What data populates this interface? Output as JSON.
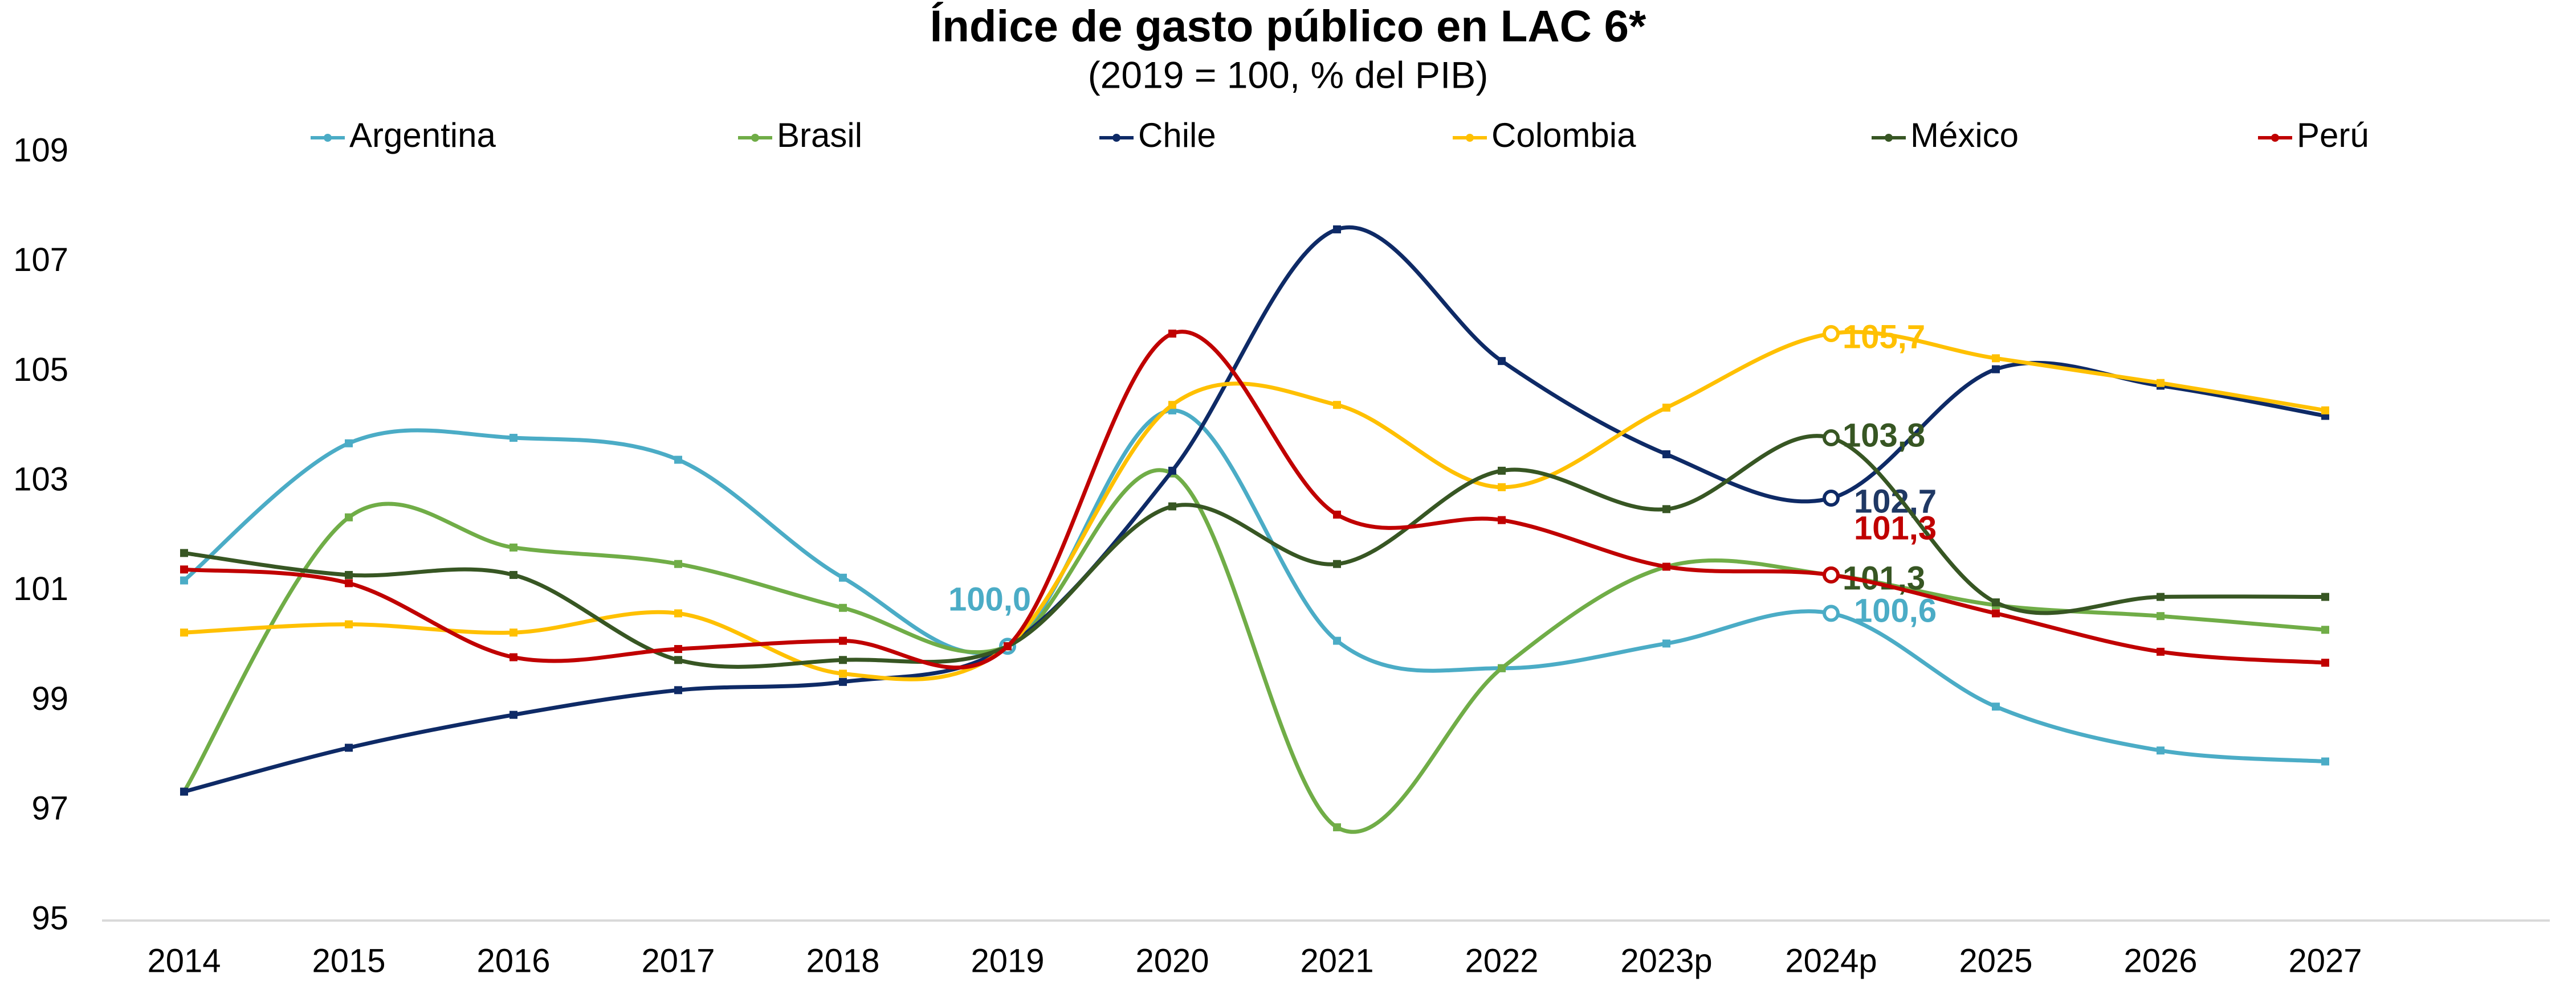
{
  "chart_data": {
    "type": "line",
    "title": "Índice de gasto público en LAC 6*",
    "subtitle": "(2019 = 100, % del PIB)",
    "categories": [
      "2014",
      "2015",
      "2016",
      "2017",
      "2018",
      "2019",
      "2020",
      "2021",
      "2022",
      "2023p",
      "2024p",
      "2025",
      "2026",
      "2027"
    ],
    "ylim": [
      95,
      109
    ],
    "yticks": [
      95,
      97,
      99,
      101,
      103,
      105,
      107,
      109
    ],
    "grid": false,
    "legend": "top",
    "series": [
      {
        "name": "Argentina",
        "color": "#4BACC6",
        "label_color": "#4BACC6",
        "values": [
          101.2,
          103.7,
          103.8,
          103.4,
          101.25,
          100,
          104.3,
          100.1,
          99.6,
          100.05,
          100.6,
          98.9,
          98.1,
          97.9
        ],
        "value_labels": [
          null,
          null,
          null,
          null,
          null,
          "100,0",
          null,
          null,
          null,
          null,
          "100,6",
          null,
          null,
          null
        ]
      },
      {
        "name": "Brasil",
        "color": "#70AD47",
        "label_color": "#375623",
        "values": [
          97.35,
          102.35,
          101.8,
          101.5,
          100.7,
          100,
          103.15,
          96.7,
          99.6,
          101.45,
          101.3,
          100.75,
          100.55,
          100.3
        ],
        "value_labels": [
          null,
          null,
          null,
          null,
          null,
          null,
          null,
          null,
          null,
          null,
          "101,3",
          null,
          null,
          null
        ]
      },
      {
        "name": "Chile",
        "color": "#0E2A66",
        "label_color": "#1F3864",
        "values": [
          97.35,
          98.15,
          98.75,
          99.2,
          99.35,
          100,
          103.2,
          107.6,
          105.2,
          103.5,
          102.7,
          105.05,
          104.75,
          104.2
        ],
        "value_labels": [
          null,
          null,
          null,
          null,
          null,
          null,
          null,
          null,
          null,
          null,
          "102,7",
          null,
          null,
          null
        ]
      },
      {
        "name": "Colombia",
        "color": "#FFC000",
        "label_color": "#FFC000",
        "values": [
          100.25,
          100.4,
          100.25,
          100.6,
          99.5,
          100,
          104.4,
          104.4,
          102.9,
          104.35,
          105.7,
          105.25,
          104.8,
          104.3
        ],
        "value_labels": [
          null,
          null,
          null,
          null,
          null,
          null,
          null,
          null,
          null,
          null,
          "105,7",
          null,
          null,
          null
        ]
      },
      {
        "name": "México",
        "color": "#375623",
        "label_color": "#375623",
        "values": [
          101.7,
          101.3,
          101.3,
          99.75,
          99.75,
          100,
          102.55,
          101.5,
          103.2,
          102.5,
          103.8,
          100.8,
          100.9,
          100.9
        ],
        "value_labels": [
          null,
          null,
          null,
          null,
          null,
          null,
          null,
          null,
          null,
          null,
          "103,8",
          null,
          null,
          null
        ]
      },
      {
        "name": "Perú",
        "color": "#C00000",
        "label_color": "#C00000",
        "values": [
          101.4,
          101.15,
          99.8,
          99.95,
          100.1,
          100,
          105.7,
          102.4,
          102.3,
          101.45,
          101.3,
          100.6,
          99.9,
          99.7
        ],
        "value_labels": [
          null,
          null,
          null,
          null,
          null,
          null,
          null,
          null,
          null,
          null,
          "101,3",
          null,
          null,
          null
        ]
      }
    ]
  }
}
